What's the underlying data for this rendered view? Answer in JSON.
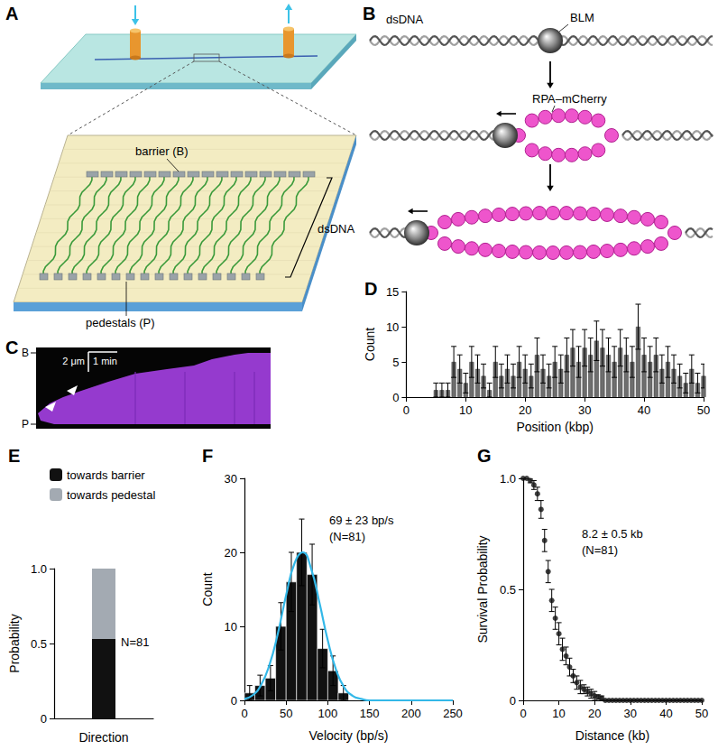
{
  "panels": {
    "A": {
      "label": "A",
      "barrier": "barrier (B)",
      "dsdna": "dsDNA",
      "pedestals": "pedestals (P)"
    },
    "B": {
      "label": "B",
      "dsdna": "dsDNA",
      "protein": "BLM",
      "rpa": "RPA–mCherry"
    },
    "C": {
      "label": "C",
      "top_mark": "B",
      "bottom_mark": "P",
      "scale_length": "2 μm",
      "scale_time": "1 min"
    }
  },
  "chart_data": [
    {
      "type": "bar",
      "title": "D",
      "x_label": "Position (kbp)",
      "y_label": "Count",
      "x": [
        5,
        6,
        7,
        8,
        9,
        10,
        11,
        12,
        13,
        14,
        15,
        16,
        17,
        18,
        19,
        20,
        21,
        22,
        23,
        24,
        25,
        26,
        27,
        28,
        29,
        30,
        31,
        32,
        33,
        34,
        35,
        36,
        37,
        38,
        39,
        40,
        41,
        42,
        43,
        44,
        45,
        46,
        47,
        48,
        49,
        50
      ],
      "values": [
        1,
        1,
        1,
        5,
        4,
        2,
        5,
        4,
        3,
        1,
        5,
        3,
        4,
        3,
        5,
        4,
        3,
        6,
        4,
        3,
        5,
        4,
        6,
        7,
        5,
        7,
        6,
        8,
        7,
        6,
        5,
        7,
        6,
        5,
        10,
        6,
        5,
        6,
        4,
        5,
        4,
        3,
        2,
        4,
        2,
        3
      ],
      "errors": [
        1,
        1,
        1,
        2.2,
        2,
        1.4,
        2.2,
        2,
        1.7,
        1,
        2.2,
        1.7,
        2,
        1.7,
        2.2,
        2,
        1.7,
        2.4,
        2,
        1.7,
        2.2,
        2,
        2.4,
        2.6,
        2.2,
        2.6,
        2.4,
        2.8,
        2.6,
        2.4,
        2.2,
        2.6,
        2.4,
        2.2,
        3.2,
        2.4,
        2.2,
        2.4,
        2,
        2.2,
        2,
        1.7,
        1.4,
        2,
        1.4,
        1.7
      ],
      "color": "#6e6e6e",
      "xlim": [
        0,
        50
      ],
      "xticks": [
        0,
        10,
        20,
        30,
        40,
        50
      ],
      "ylim": [
        0,
        15
      ],
      "yticks": [
        0,
        5,
        10,
        15
      ],
      "grid": false
    },
    {
      "type": "bar",
      "title": "E",
      "x_label": "Direction",
      "y_label": "Probability",
      "categories": [
        null
      ],
      "series": [
        {
          "name": "towards barrier",
          "color": "#111111",
          "values": [
            0.53
          ]
        },
        {
          "name": "towards pedestal",
          "color": "#a3aab2",
          "values": [
            0.47
          ]
        }
      ],
      "stacked": true,
      "legend": "top",
      "ylim": [
        0,
        1
      ],
      "yticks": [
        0,
        0.5,
        {
          "value": 1,
          "label": "1.0"
        }
      ],
      "annotations": [
        "N=81"
      ],
      "grid": false
    },
    {
      "type": "histogram",
      "title": "F",
      "x_label": "Velocity (bp/s)",
      "y_label": "Count",
      "bins": [
        0,
        12.5,
        25,
        37.5,
        50,
        62.5,
        75,
        87.5,
        100,
        112.5,
        125
      ],
      "values": [
        1,
        2,
        3,
        10,
        16,
        20,
        17,
        7,
        4,
        1
      ],
      "errors": [
        1,
        1.4,
        1.7,
        3.2,
        4,
        4.5,
        4.1,
        2.6,
        2,
        1
      ],
      "color": "#111111",
      "fit": {
        "x": [
          0,
          10,
          20,
          30,
          40,
          50,
          60,
          70,
          80,
          90,
          100,
          110,
          120,
          130,
          140,
          150,
          160,
          170,
          180,
          190,
          200,
          210,
          220,
          230,
          240,
          250
        ],
        "values": [
          0.2,
          0.7,
          2.1,
          4.8,
          9,
          14.2,
          18.5,
          20,
          17.8,
          13.2,
          8.1,
          4.1,
          1.7,
          0.6,
          0.2,
          0,
          0,
          0,
          0,
          0,
          0,
          0,
          0,
          0,
          0,
          0
        ],
        "color": "#33b8e8"
      },
      "xlim": [
        0,
        250
      ],
      "xticks": [
        0,
        50,
        100,
        150,
        200,
        250
      ],
      "ylim": [
        0,
        30
      ],
      "yticks": [
        0,
        10,
        20,
        30
      ],
      "annotations": [
        "69 ± 23 bp/s",
        "(N=81)"
      ],
      "grid": false
    },
    {
      "type": "scatter",
      "title": "G",
      "x_label": "Distance (kb)",
      "y_label": "Survival Probability",
      "x": [
        0,
        1,
        2,
        3,
        4,
        5,
        6,
        7,
        8,
        9,
        10,
        11,
        12,
        13,
        14,
        15,
        16,
        17,
        18,
        19,
        20,
        21,
        22,
        23,
        24,
        25,
        26,
        27,
        28,
        29,
        30,
        31,
        32,
        33,
        34,
        35,
        36,
        37,
        38,
        39,
        40,
        41,
        42,
        43,
        44,
        45,
        46,
        47,
        48,
        49,
        50
      ],
      "values": [
        1,
        1,
        0.99,
        0.97,
        0.93,
        0.86,
        0.72,
        0.58,
        0.45,
        0.37,
        0.3,
        0.23,
        0.2,
        0.15,
        0.11,
        0.08,
        0.06,
        0.05,
        0.04,
        0.03,
        0.02,
        0.015,
        0.01,
        0,
        0,
        0,
        0,
        0,
        0,
        0,
        0,
        0,
        0,
        0,
        0,
        0,
        0,
        0,
        0,
        0,
        0,
        0,
        0,
        0,
        0,
        0,
        0,
        0,
        0,
        0,
        0
      ],
      "errors": [
        0,
        0,
        0.01,
        0.02,
        0.03,
        0.04,
        0.05,
        0.05,
        0.05,
        0.05,
        0.05,
        0.05,
        0.04,
        0.04,
        0.03,
        0.03,
        0.03,
        0.02,
        0.02,
        0.02,
        0.02,
        0.01,
        0.01,
        0,
        0,
        0,
        0,
        0,
        0,
        0,
        0,
        0,
        0,
        0,
        0,
        0,
        0,
        0,
        0,
        0,
        0,
        0,
        0,
        0,
        0,
        0,
        0,
        0,
        0,
        0,
        0
      ],
      "color": "#111111",
      "marker": "circle",
      "xlim": [
        0,
        50
      ],
      "xticks": [
        0,
        10,
        20,
        30,
        40,
        50
      ],
      "ylim": [
        0,
        1
      ],
      "yticks": [
        0,
        0.5,
        {
          "value": 1,
          "label": "1.0"
        }
      ],
      "annotations": [
        "8.2 ± 0.5 kb",
        "(N=81)"
      ],
      "grid": false
    }
  ]
}
